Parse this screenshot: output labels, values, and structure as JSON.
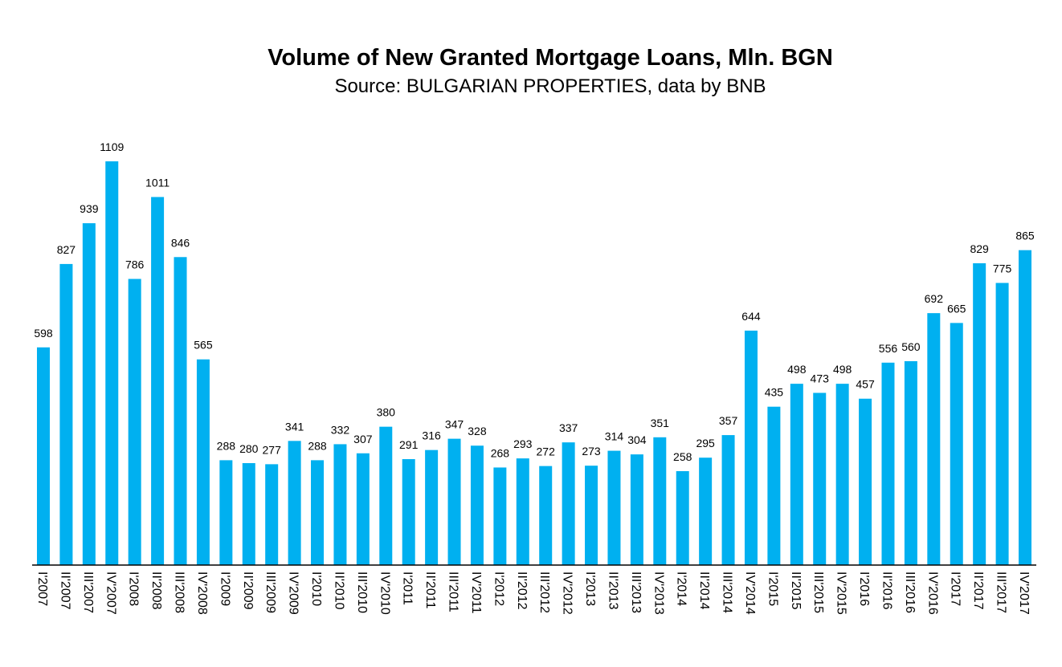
{
  "chart_data": {
    "type": "bar",
    "title": "Volume of New Granted Mortgage Loans, Mln. BGN",
    "subtitle": "Source: BULGARIAN PROPERTIES, data by BNB",
    "xlabel": "",
    "ylabel": "",
    "ylim": [
      0,
      1109
    ],
    "grid": false,
    "bar_color": "#00B0F0",
    "categories": [
      "I'2007",
      "II'2007",
      "III'2007",
      "IV'2007",
      "I'2008",
      "II'2008",
      "III'2008",
      "IV'2008",
      "I'2009",
      "II'2009",
      "III'2009",
      "IV'2009",
      "I'2010",
      "II'2010",
      "III'2010",
      "IV'2010",
      "I'2011",
      "II'2011",
      "III'2011",
      "IV'2011",
      "I'2012",
      "II'2012",
      "III'2012",
      "IV'2012",
      "I'2013",
      "II'2013",
      "III'2013",
      "IV'2013",
      "I'2014",
      "II'2014",
      "III'2014",
      "IV'2014",
      "I'2015",
      "II'2015",
      "III'2015",
      "IV'2015",
      "I'2016",
      "II'2016",
      "III'2016",
      "IV'2016",
      "I'2017",
      "II'2017",
      "III'2017",
      "IV'2017"
    ],
    "values": [
      598,
      827,
      939,
      1109,
      786,
      1011,
      846,
      565,
      288,
      280,
      277,
      341,
      288,
      332,
      307,
      380,
      291,
      316,
      347,
      328,
      268,
      293,
      272,
      337,
      273,
      314,
      304,
      351,
      258,
      295,
      357,
      644,
      435,
      498,
      473,
      498,
      457,
      556,
      560,
      692,
      665,
      829,
      775,
      865
    ]
  }
}
